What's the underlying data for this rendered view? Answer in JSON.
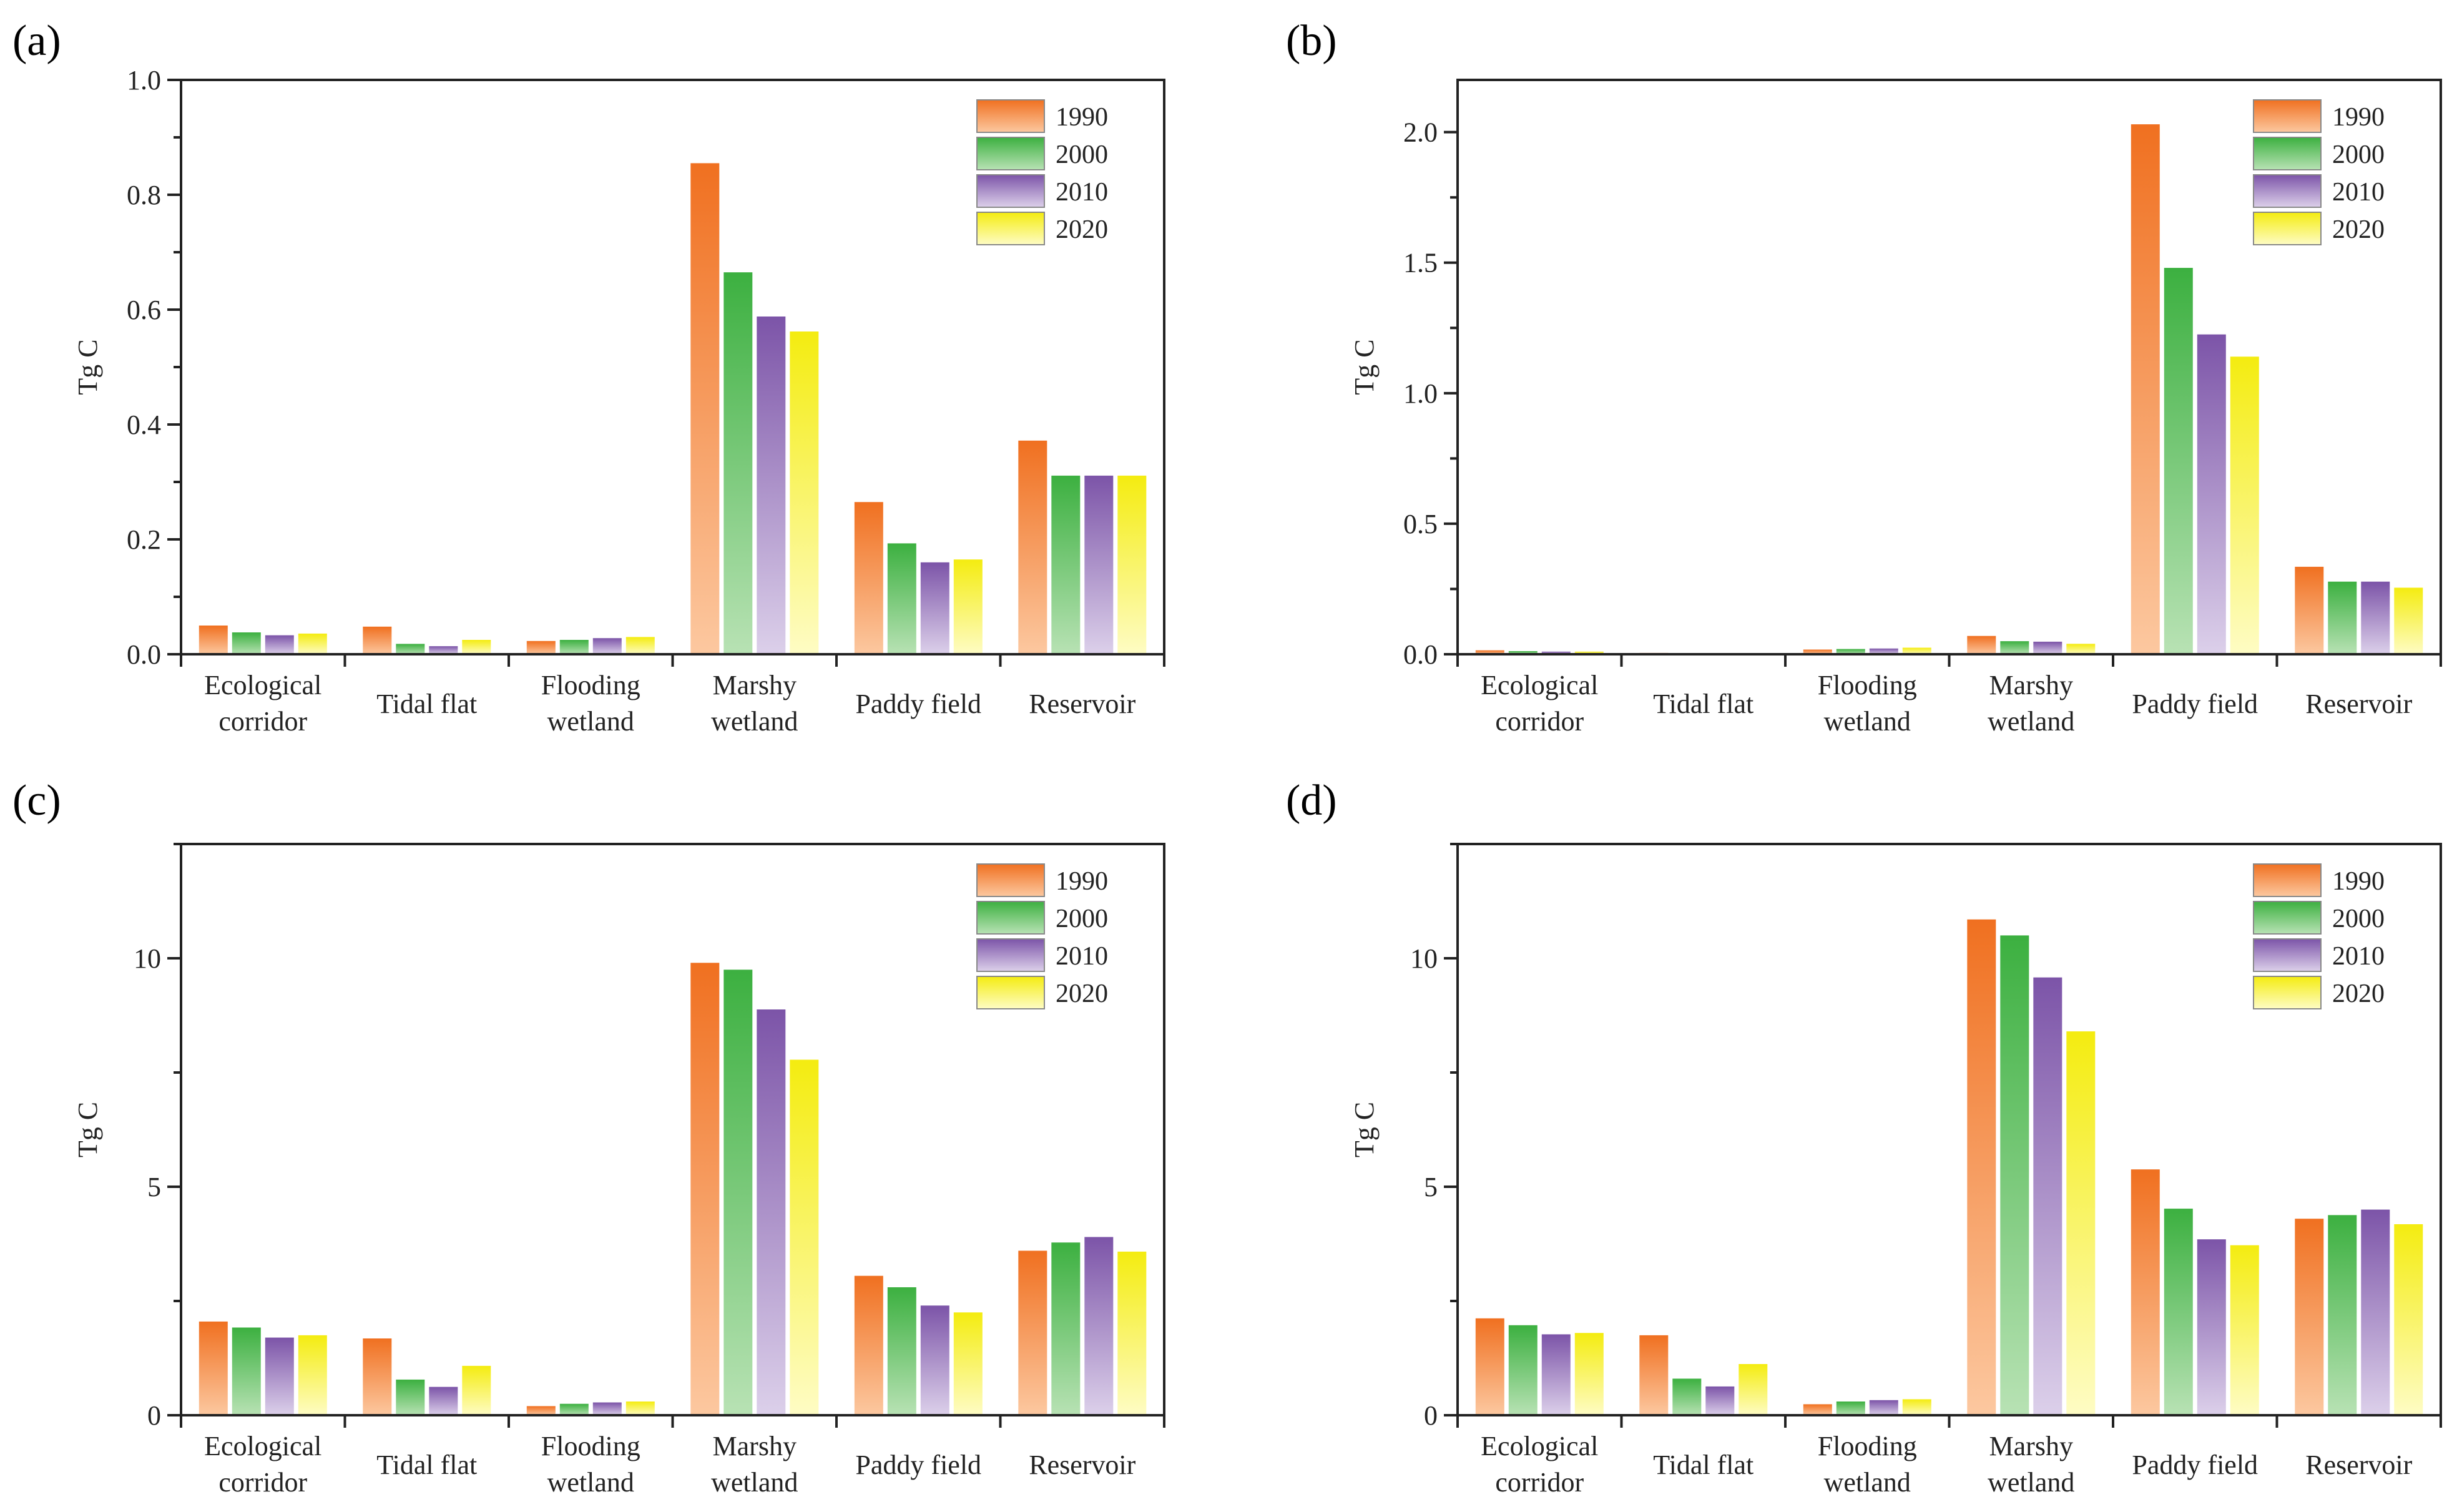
{
  "colors": {
    "1990": {
      "top": "#f07020",
      "bottom": "#fcc8a0"
    },
    "2000": {
      "top": "#3cb040",
      "bottom": "#b8e2b4"
    },
    "2010": {
      "top": "#7c54a8",
      "bottom": "#dcd0ea"
    },
    "2020": {
      "top": "#f4ec10",
      "bottom": "#fefcc4"
    }
  },
  "chart_data": [
    {
      "type": "bar",
      "panel": "(a)",
      "ylabel": "Tg C",
      "ylim": [
        0,
        1.0
      ],
      "yticks": [
        0.0,
        0.2,
        0.4,
        0.6,
        0.8,
        1.0
      ],
      "ytick_labels": [
        "0.0",
        "0.2",
        "0.4",
        "0.6",
        "0.8",
        "1.0"
      ],
      "categories": [
        [
          "Ecological",
          "corridor"
        ],
        [
          "Tidal flat"
        ],
        [
          "Flooding",
          "wetland"
        ],
        [
          "Marshy",
          "wetland"
        ],
        [
          "Paddy field"
        ],
        [
          "Reservoir"
        ]
      ],
      "legend": "top-right",
      "series": [
        {
          "name": "1990",
          "values": [
            0.05,
            0.048,
            0.023,
            0.855,
            0.265,
            0.372
          ]
        },
        {
          "name": "2000",
          "values": [
            0.038,
            0.018,
            0.025,
            0.665,
            0.193,
            0.311
          ]
        },
        {
          "name": "2010",
          "values": [
            0.033,
            0.014,
            0.028,
            0.588,
            0.16,
            0.311
          ]
        },
        {
          "name": "2020",
          "values": [
            0.036,
            0.025,
            0.03,
            0.562,
            0.165,
            0.311
          ]
        }
      ]
    },
    {
      "type": "bar",
      "panel": "(b)",
      "ylabel": "Tg C",
      "ylim": [
        0,
        2.2
      ],
      "yticks": [
        0.0,
        0.5,
        1.0,
        1.5,
        2.0
      ],
      "ytick_labels": [
        "0.0",
        "0.5",
        "1.0",
        "1.5",
        "2.0"
      ],
      "categories": [
        [
          "Ecological",
          "corridor"
        ],
        [
          "Tidal flat"
        ],
        [
          "Flooding",
          "wetland"
        ],
        [
          "Marshy",
          "wetland"
        ],
        [
          "Paddy field"
        ],
        [
          "Reservoir"
        ]
      ],
      "legend": "top-right",
      "series": [
        {
          "name": "1990",
          "values": [
            0.015,
            0.005,
            0.018,
            0.07,
            2.03,
            0.335
          ]
        },
        {
          "name": "2000",
          "values": [
            0.012,
            0.002,
            0.02,
            0.05,
            1.48,
            0.278
          ]
        },
        {
          "name": "2010",
          "values": [
            0.01,
            0.002,
            0.022,
            0.048,
            1.225,
            0.278
          ]
        },
        {
          "name": "2020",
          "values": [
            0.01,
            0.003,
            0.025,
            0.04,
            1.14,
            0.255
          ]
        }
      ]
    },
    {
      "type": "bar",
      "panel": "(c)",
      "ylabel": "Tg C",
      "ylim": [
        0,
        12.5
      ],
      "yticks": [
        0,
        5,
        10
      ],
      "ytick_labels": [
        "0",
        "5",
        "10"
      ],
      "categories": [
        [
          "Ecological",
          "corridor"
        ],
        [
          "Tidal flat"
        ],
        [
          "Flooding",
          "wetland"
        ],
        [
          "Marshy",
          "wetland"
        ],
        [
          "Paddy field"
        ],
        [
          "Reservoir"
        ]
      ],
      "legend": "top-right",
      "series": [
        {
          "name": "1990",
          "values": [
            2.05,
            1.68,
            0.2,
            9.9,
            3.05,
            3.6
          ]
        },
        {
          "name": "2000",
          "values": [
            1.92,
            0.78,
            0.25,
            9.75,
            2.8,
            3.78
          ]
        },
        {
          "name": "2010",
          "values": [
            1.7,
            0.62,
            0.28,
            8.88,
            2.4,
            3.9
          ]
        },
        {
          "name": "2020",
          "values": [
            1.75,
            1.08,
            0.3,
            7.78,
            2.25,
            3.58
          ]
        }
      ]
    },
    {
      "type": "bar",
      "panel": "(d)",
      "ylabel": "Tg C",
      "ylim": [
        0,
        12.5
      ],
      "yticks": [
        0,
        5,
        10
      ],
      "ytick_labels": [
        "0",
        "5",
        "10"
      ],
      "categories": [
        [
          "Ecological",
          "corridor"
        ],
        [
          "Tidal flat"
        ],
        [
          "Flooding",
          "wetland"
        ],
        [
          "Marshy",
          "wetland"
        ],
        [
          "Paddy field"
        ],
        [
          "Reservoir"
        ]
      ],
      "legend": "top-right",
      "series": [
        {
          "name": "1990",
          "values": [
            2.12,
            1.75,
            0.24,
            10.85,
            5.38,
            4.3
          ]
        },
        {
          "name": "2000",
          "values": [
            1.97,
            0.8,
            0.3,
            10.5,
            4.52,
            4.38
          ]
        },
        {
          "name": "2010",
          "values": [
            1.77,
            0.63,
            0.33,
            9.58,
            3.85,
            4.5
          ]
        },
        {
          "name": "2020",
          "values": [
            1.8,
            1.12,
            0.35,
            8.4,
            3.72,
            4.18
          ]
        }
      ]
    }
  ]
}
